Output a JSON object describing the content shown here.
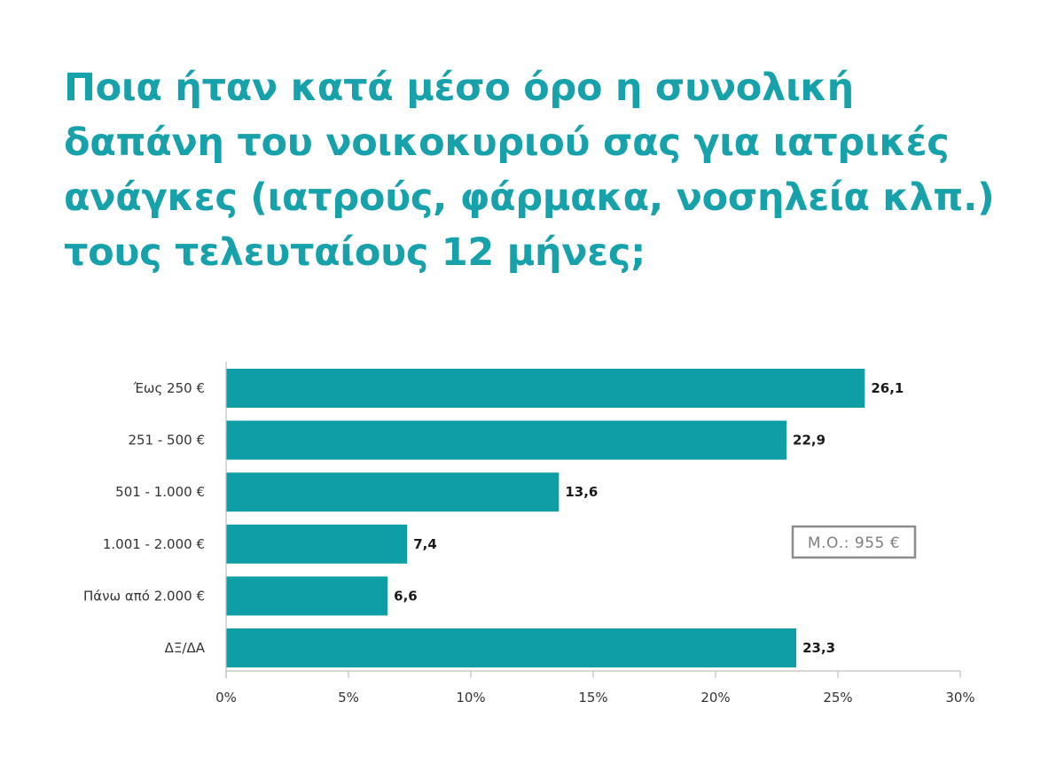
{
  "title_lines": [
    "Ποια ήταν κατά μέσο όρο η συνολική",
    "δαπάνη του νοικοκυριού σας για ιατρικές",
    "ανάγκες (ιατρούς, φάρμακα, νοσηλεία κλπ.)",
    "τους τελευταίους 12 μήνες;"
  ],
  "note": "Μ.Ο.: 955 €",
  "colors": {
    "title": "#17a1aa",
    "bar": "#0f9ea5",
    "axis": "#bfbfbf",
    "note_border": "#8c8c8c"
  },
  "chart_data": {
    "type": "bar",
    "orientation": "horizontal",
    "categories": [
      "Έως 250 €",
      "251 - 500 €",
      "501 - 1.000 €",
      "1.001 - 2.000 €",
      "Πάνω από 2.000 €",
      "ΔΞ/ΔΑ"
    ],
    "values": [
      26.1,
      22.9,
      13.6,
      7.4,
      6.6,
      23.3
    ],
    "value_labels": [
      "26,1",
      "22,9",
      "13,6",
      "7,4",
      "6,6",
      "23,3"
    ],
    "xlim": [
      0,
      30
    ],
    "xticks": [
      0,
      5,
      10,
      15,
      20,
      25,
      30
    ],
    "xtick_labels": [
      "0%",
      "5%",
      "10%",
      "15%",
      "20%",
      "25%",
      "30%"
    ],
    "grid": false
  }
}
